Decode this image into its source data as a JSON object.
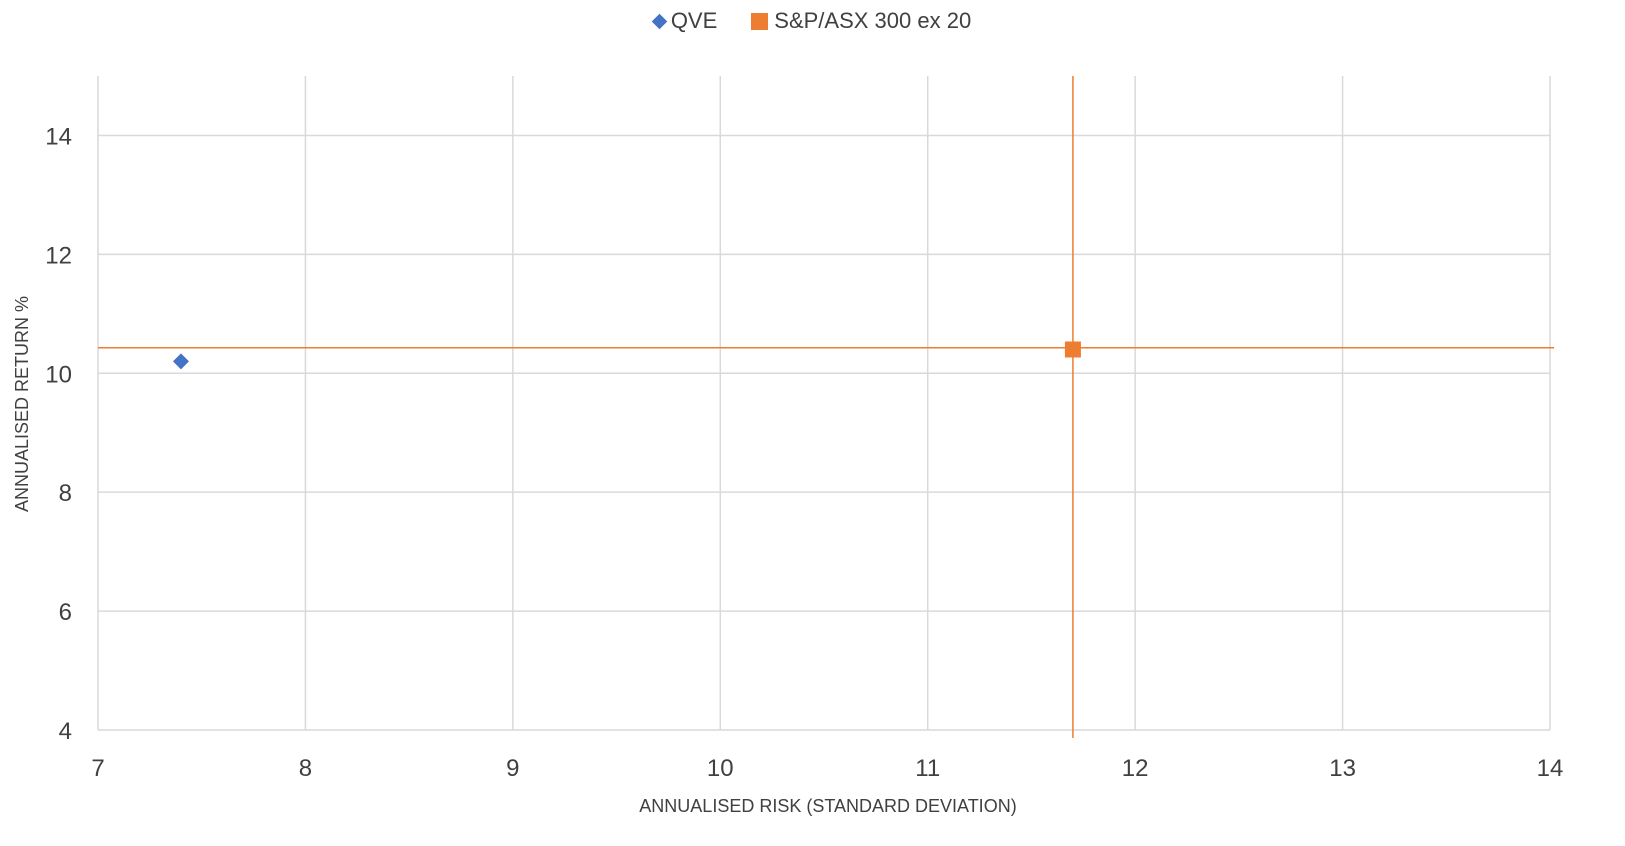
{
  "chart_data": {
    "type": "scatter",
    "title": "",
    "xlabel": "ANNUALISED RISK (STANDARD DEVIATION)",
    "ylabel": "ANNUALISED RETURN %",
    "xlim": [
      7,
      14
    ],
    "ylim": [
      4,
      15
    ],
    "xticks": [
      7,
      8,
      9,
      10,
      11,
      12,
      13,
      14
    ],
    "yticks": [
      4,
      6,
      8,
      10,
      12,
      14
    ],
    "grid": true,
    "legend_position": "top-center",
    "series": [
      {
        "name": "QVE",
        "marker": "diamond",
        "color": "#4472C4",
        "points": [
          {
            "x": 7.4,
            "y": 10.2
          }
        ]
      },
      {
        "name": "S&P/ASX 300 ex 20",
        "marker": "square",
        "color": "#ED7D31",
        "points": [
          {
            "x": 11.7,
            "y": 10.4
          }
        ]
      }
    ],
    "reference_lines": [
      {
        "orientation": "vertical",
        "value": 11.7,
        "color": "#ED7D31"
      },
      {
        "orientation": "horizontal",
        "value": 10.43,
        "color": "#ED7D31"
      }
    ]
  }
}
